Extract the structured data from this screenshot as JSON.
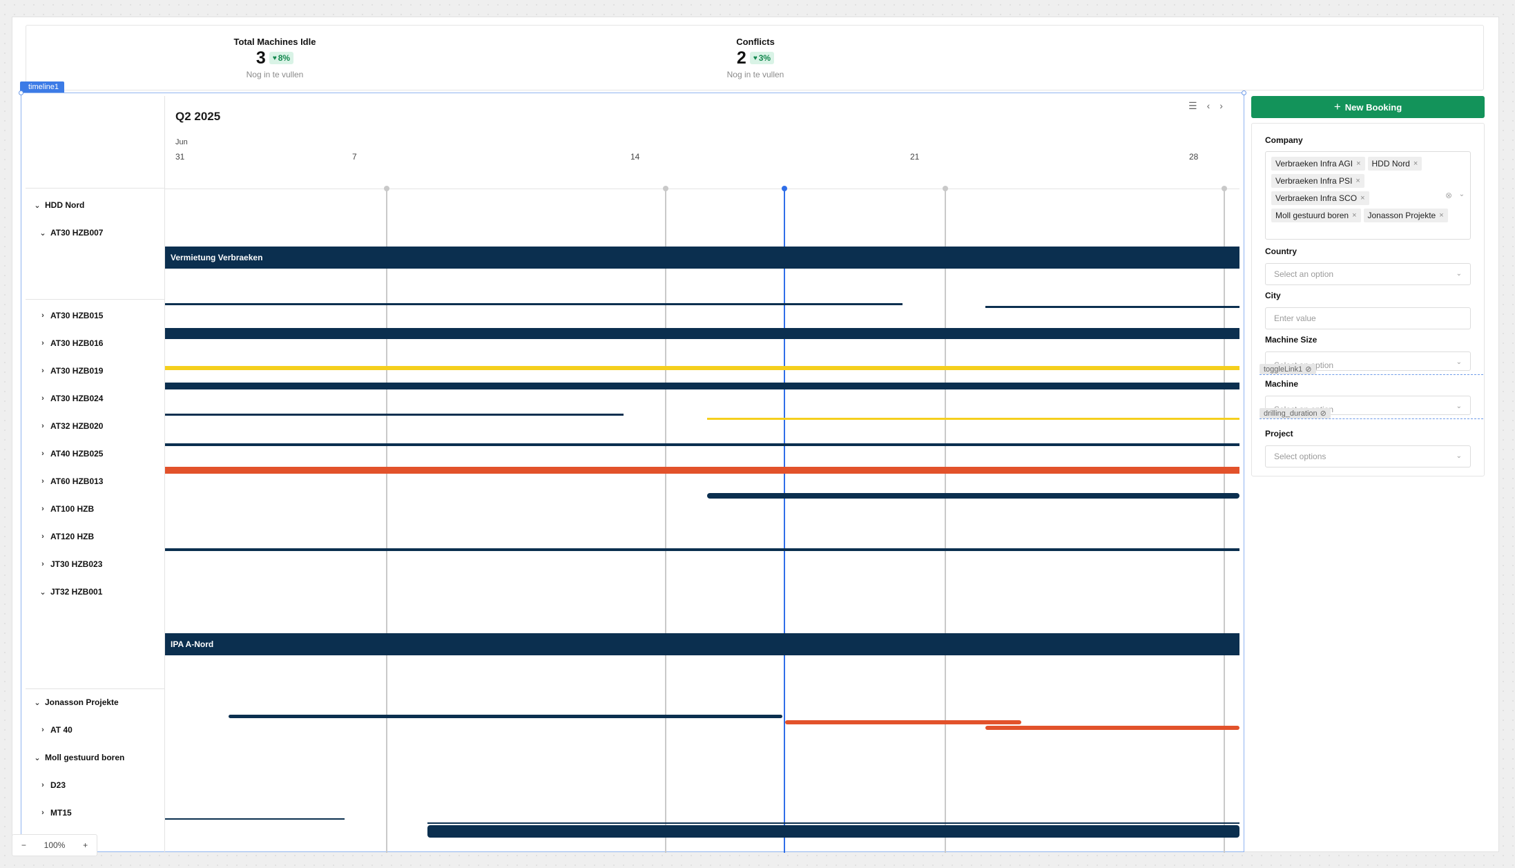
{
  "stats": [
    {
      "label": "Total Machines Idle",
      "value": "3",
      "delta": "8%",
      "sub": "Nog in te vullen"
    },
    {
      "label": "Conflicts",
      "value": "2",
      "delta": "3%",
      "sub": "Nog in te vullen"
    }
  ],
  "component_tag": "timeline1",
  "timeline": {
    "title": "Q2 2025",
    "month": "Jun",
    "ticks": [
      "31",
      "7",
      "14",
      "21",
      "28"
    ],
    "tree": [
      {
        "label": "HDD Nord",
        "expanded": true
      },
      {
        "label": "AT30 HZB007",
        "expanded": true
      },
      {
        "label": "AT30 HZB015",
        "expanded": false
      },
      {
        "label": "AT30 HZB016",
        "expanded": false
      },
      {
        "label": "AT30 HZB019",
        "expanded": false
      },
      {
        "label": "AT30 HZB024",
        "expanded": false
      },
      {
        "label": "AT32 HZB020",
        "expanded": false
      },
      {
        "label": "AT40 HZB025",
        "expanded": false
      },
      {
        "label": "AT60 HZB013",
        "expanded": false
      },
      {
        "label": "AT100 HZB",
        "expanded": false
      },
      {
        "label": "AT120 HZB",
        "expanded": false
      },
      {
        "label": "JT30 HZB023",
        "expanded": false
      },
      {
        "label": "JT32 HZB001",
        "expanded": true
      },
      {
        "label": "Jonasson Projekte",
        "expanded": true
      },
      {
        "label": "AT 40",
        "expanded": false
      },
      {
        "label": "Moll gestuurd boren",
        "expanded": true
      },
      {
        "label": "D23",
        "expanded": false
      },
      {
        "label": "MT15",
        "expanded": false
      }
    ],
    "bars": [
      {
        "label": "Vermietung Verbraeken",
        "color": "#0b2f4f"
      },
      {
        "label": "IPA A-Nord",
        "color": "#0b2f4f"
      }
    ],
    "colors": {
      "navy": "#0b2f4f",
      "yellow": "#f5cf1d",
      "orange": "#e2522b",
      "today": "#2f6ee8"
    }
  },
  "new_booking_label": "New Booking",
  "filters": {
    "company": {
      "label": "Company",
      "chips": [
        "Verbraeken Infra AGI",
        "HDD Nord",
        "Verbraeken Infra PSI",
        "Verbraeken Infra SCO",
        "Moll gestuurd boren",
        "Jonasson Projekte"
      ]
    },
    "country": {
      "label": "Country",
      "placeholder": "Select an option"
    },
    "city": {
      "label": "City",
      "placeholder": "Enter value"
    },
    "machine_size": {
      "label": "Machine Size",
      "placeholder": "Select an option",
      "ghost": "toggleLink1"
    },
    "machine": {
      "label": "Machine",
      "placeholder": "Select an option",
      "ghost": "drilling_duration"
    },
    "project": {
      "label": "Project",
      "placeholder": "Select options"
    }
  },
  "zoom": {
    "minus": "−",
    "value": "100%",
    "plus": "+"
  }
}
